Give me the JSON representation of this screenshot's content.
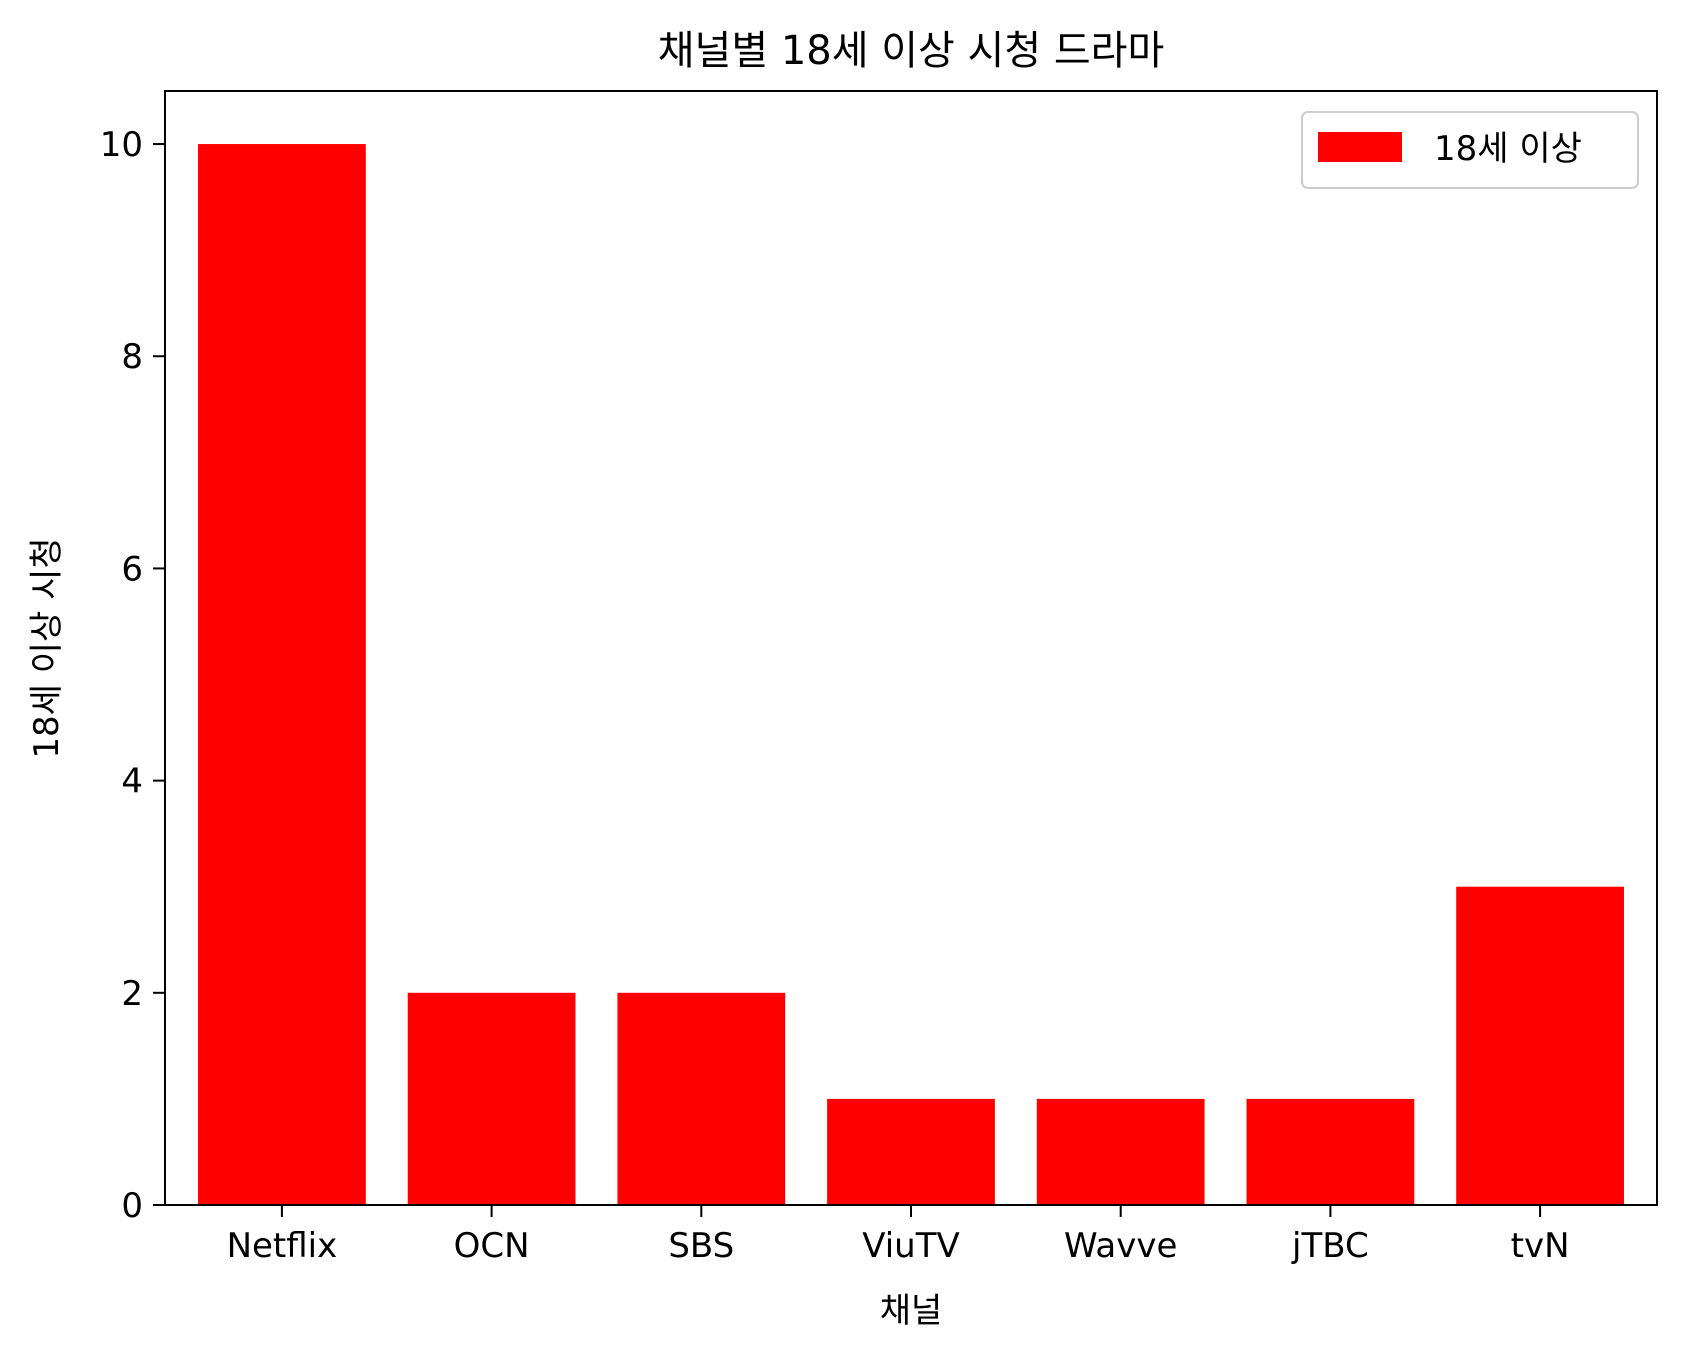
{
  "chart_data": {
    "type": "bar",
    "title": "채널별 18세 이상 시청 드라마",
    "xlabel": "채널",
    "ylabel": "18세 이상 시청",
    "categories": [
      "Netflix",
      "OCN",
      "SBS",
      "ViuTV",
      "Wavve",
      "jTBC",
      "tvN"
    ],
    "series": [
      {
        "name": "18세 이상",
        "values": [
          10,
          2,
          2,
          1,
          1,
          1,
          3
        ],
        "color": "#ff0000"
      }
    ],
    "ylim": [
      0,
      10.5
    ],
    "yticks": [
      0,
      2,
      4,
      6,
      8,
      10
    ],
    "grid": false,
    "legend_position": "top-right"
  }
}
